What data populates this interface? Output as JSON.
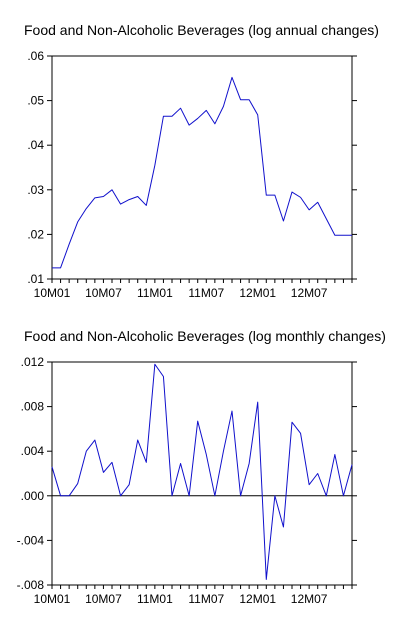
{
  "chart_data": [
    {
      "type": "line",
      "title": "Food and Non-Alcoholic Beverages (log annual changes)",
      "xlabel": "",
      "ylabel": "",
      "x_tick_labels": [
        "10M01",
        "10M07",
        "11M01",
        "11M07",
        "12M01",
        "12M07"
      ],
      "y_tick_labels": [
        ".01",
        ".02",
        ".03",
        ".04",
        ".05",
        ".06"
      ],
      "ylim": [
        0.01,
        0.06
      ],
      "grid": false,
      "line_color": "#1010cc",
      "series": [
        {
          "values": [
            0.0125,
            0.0125,
            0.0178,
            0.0228,
            0.0258,
            0.0282,
            0.0285,
            0.03,
            0.0268,
            0.0278,
            0.0285,
            0.0265,
            0.0355,
            0.0465,
            0.0465,
            0.0483,
            0.0445,
            0.046,
            0.0478,
            0.0448,
            0.0487,
            0.0552,
            0.0502,
            0.0502,
            0.0468,
            0.0288,
            0.0288,
            0.023,
            0.0295,
            0.0283,
            0.0255,
            0.0272,
            0.0235,
            0.0198,
            0.0198,
            0.0198
          ]
        }
      ]
    },
    {
      "type": "line",
      "title": "Food and Non-Alcoholic Beverages (log monthly changes)",
      "xlabel": "",
      "ylabel": "",
      "x_tick_labels": [
        "10M01",
        "10M07",
        "11M01",
        "11M07",
        "12M01",
        "12M07"
      ],
      "y_tick_labels": [
        "-.008",
        "-.004",
        ".000",
        ".004",
        ".008",
        ".012"
      ],
      "ylim": [
        -0.008,
        0.012
      ],
      "grid": false,
      "zero_line": true,
      "line_color": "#1010cc",
      "series": [
        {
          "values": [
            0.0026,
            0.0,
            0.0,
            0.0011,
            0.004,
            0.005,
            0.0021,
            0.003,
            0.0,
            0.001,
            0.005,
            0.003,
            0.0118,
            0.0107,
            0.0,
            0.0029,
            0.0,
            0.0067,
            0.0037,
            0.0,
            0.004,
            0.0076,
            0.0,
            0.0029,
            0.0084,
            -0.0075,
            0.0,
            -0.0028,
            0.0066,
            0.0056,
            0.001,
            0.002,
            0.0,
            0.0037,
            0.0,
            0.0028
          ]
        }
      ]
    }
  ]
}
